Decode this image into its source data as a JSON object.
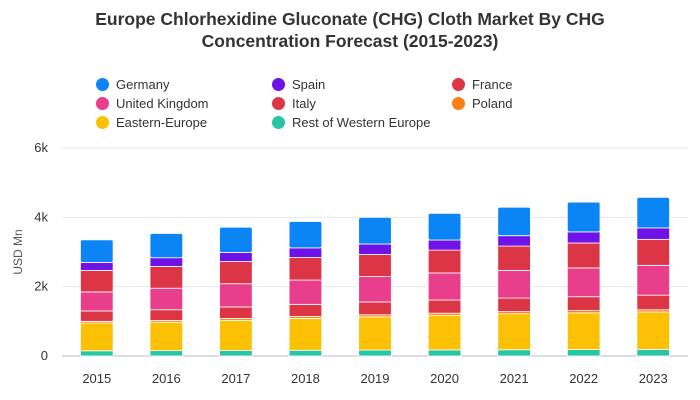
{
  "chart_data": {
    "type": "bar",
    "stacked": true,
    "title_line1": "Europe Chlorhexidine Gluconate (CHG) Cloth Market By CHG",
    "title_line2": "Concentration Forecast (2015-2023)",
    "xlabel": "",
    "ylabel": "USD Mn",
    "ylim": [
      0,
      6000
    ],
    "yticks": [
      {
        "value": 0,
        "label": "0"
      },
      {
        "value": 2000,
        "label": "2k"
      },
      {
        "value": 4000,
        "label": "4k"
      },
      {
        "value": 6000,
        "label": "6k"
      }
    ],
    "grid": true,
    "legend_position": "top",
    "categories": [
      "2015",
      "2016",
      "2017",
      "2018",
      "2019",
      "2020",
      "2021",
      "2022",
      "2023"
    ],
    "series": [
      {
        "name": "Rest of Western Europe",
        "color": "#26c6a4",
        "values": [
          150,
          155,
          160,
          165,
          170,
          175,
          180,
          185,
          190
        ]
      },
      {
        "name": "Eastern-Europe",
        "color": "#fcc104",
        "values": [
          800,
          820,
          870,
          920,
          960,
          1000,
          1040,
          1060,
          1080
        ]
      },
      {
        "name": "Poland",
        "color": "#fd7e14",
        "values": [
          50,
          50,
          55,
          55,
          60,
          60,
          60,
          65,
          65
        ]
      },
      {
        "name": "Italy",
        "color": "#dc3545",
        "values": [
          300,
          310,
          330,
          350,
          370,
          380,
          390,
          400,
          420
        ]
      },
      {
        "name": "United Kingdom",
        "color": "#e83e8c",
        "values": [
          550,
          620,
          670,
          700,
          730,
          780,
          800,
          830,
          860
        ]
      },
      {
        "name": "France",
        "color": "#dc3545",
        "values": [
          620,
          630,
          640,
          650,
          640,
          660,
          700,
          720,
          750
        ]
      },
      {
        "name": "Spain",
        "color": "#6f12e8",
        "values": [
          230,
          250,
          260,
          280,
          300,
          290,
          300,
          320,
          330
        ]
      },
      {
        "name": "Germany",
        "color": "#0b84f5",
        "values": [
          650,
          700,
          730,
          760,
          770,
          770,
          820,
          860,
          880
        ]
      }
    ],
    "legend": [
      {
        "name": "Germany",
        "color": "#0b84f5"
      },
      {
        "name": "Spain",
        "color": "#6f12e8"
      },
      {
        "name": "France",
        "color": "#dc3545"
      },
      {
        "name": "United Kingdom",
        "color": "#e83e8c"
      },
      {
        "name": "Italy",
        "color": "#dc3545"
      },
      {
        "name": "Poland",
        "color": "#fd7e14"
      },
      {
        "name": "Eastern-Europe",
        "color": "#fcc104"
      },
      {
        "name": "Rest of Western Europe",
        "color": "#26c6a4"
      }
    ]
  }
}
